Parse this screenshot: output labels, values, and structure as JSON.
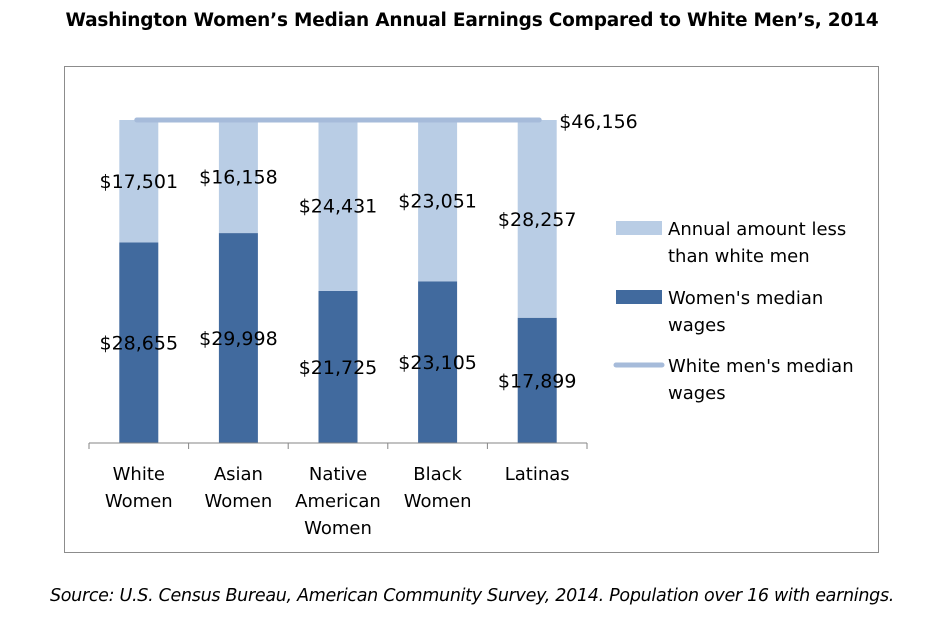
{
  "title": "Washington Women’s Median Annual Earnings Compared to White Men’s, 2014",
  "source": "Source: U.S. Census Bureau, American Community Survey, 2014. Population over 16 with earnings.",
  "colors": {
    "gap": "#b9cde5",
    "women": "#416a9e",
    "white_men_line": "#a6bbda",
    "frame": "#8c8c8c",
    "axis": "#868686"
  },
  "chart_data": {
    "type": "bar",
    "stacked": true,
    "categories": [
      [
        "White",
        "Women"
      ],
      [
        "Asian",
        "Women"
      ],
      [
        "Native",
        "American",
        "Women"
      ],
      [
        "Black",
        "Women"
      ],
      [
        "Latinas"
      ]
    ],
    "series": [
      {
        "name": "Women's median wages",
        "values": [
          28655,
          29998,
          21725,
          23105,
          17899
        ],
        "labels": [
          "$28,655",
          "$29,998",
          "$21,725",
          "$23,105",
          "$17,899"
        ]
      },
      {
        "name": "Annual amount less than white men",
        "values": [
          17501,
          16158,
          24431,
          23051,
          28257
        ],
        "labels": [
          "$17,501",
          "$16,158",
          "$24,431",
          "$23,051",
          "$28,257"
        ]
      }
    ],
    "reference_line": {
      "name": "White men's median wages",
      "value": 46156,
      "label": "$46,156"
    },
    "legend": [
      {
        "key": "gap",
        "lines": [
          "Annual amount less",
          "than white men"
        ]
      },
      {
        "key": "women",
        "lines": [
          "Women's median",
          "wages"
        ]
      },
      {
        "key": "line",
        "lines": [
          "White men's median",
          "wages"
        ]
      }
    ],
    "legend_position": "right",
    "ylim": [
      0,
      46156
    ],
    "grid": false
  }
}
